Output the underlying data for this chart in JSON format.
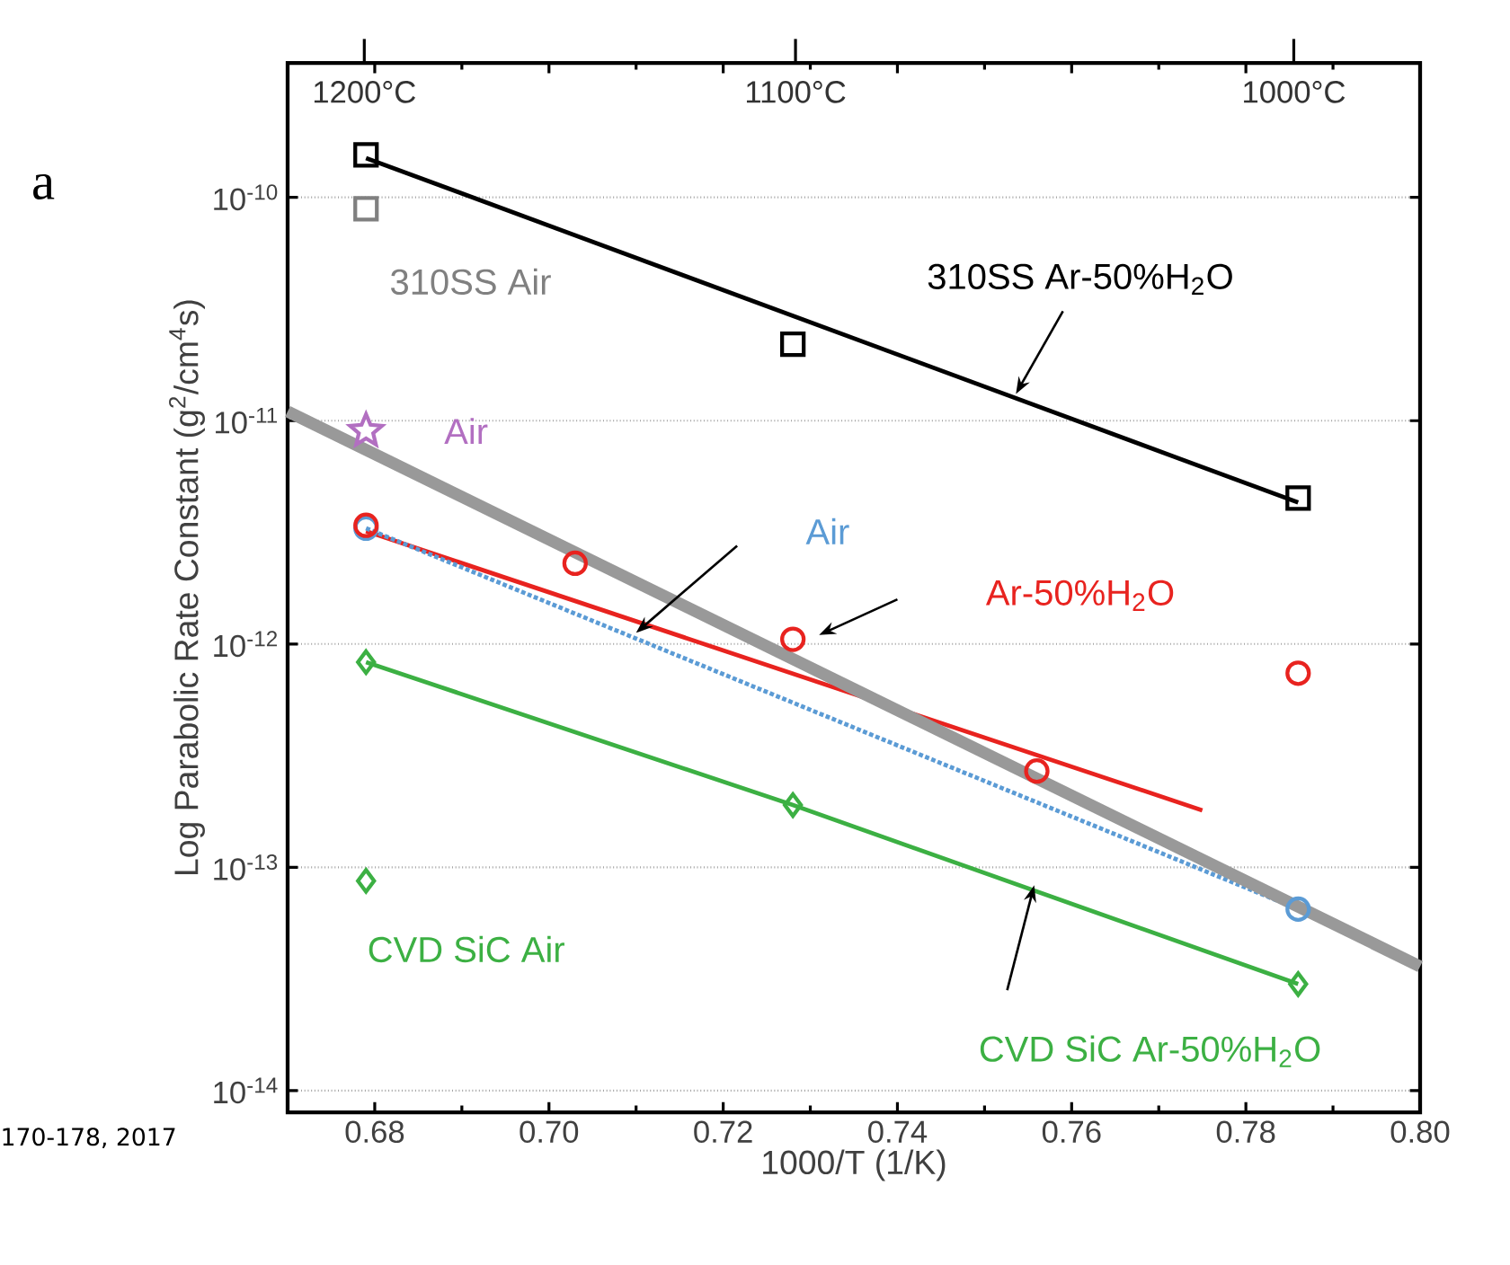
{
  "chart_data": {
    "type": "scatter",
    "xlabel": "1000/T (1/K)",
    "ylabel": "Log Parabolic Rate Constant (g$^{2}$/cm$^{4}$s)",
    "xlim": [
      0.67,
      0.8
    ],
    "ylim": [
      8e-15,
      4e-10
    ],
    "log": "y",
    "grid": "y",
    "xticks": [
      {
        "value": 0.68,
        "label": "0.68"
      },
      {
        "value": 0.7,
        "label": "0.70"
      },
      {
        "value": 0.72,
        "label": "0.72"
      },
      {
        "value": 0.74,
        "label": "0.74"
      },
      {
        "value": 0.76,
        "label": "0.76"
      },
      {
        "value": 0.78,
        "label": "0.78"
      },
      {
        "value": 0.8,
        "label": "0.80"
      }
    ],
    "yticks": [
      {
        "value": 1e-14,
        "label": "10$^{-14}$"
      },
      {
        "value": 1e-13,
        "label": "10$^{-13}$"
      },
      {
        "value": 1e-12,
        "label": "10$^{-12}$"
      },
      {
        "value": 1e-11,
        "label": "10$^{-11}$"
      },
      {
        "value": 1e-10,
        "label": "10$^{-10}$"
      }
    ],
    "annotations": [
      "a",
      "170-178, 2017",
      "1200°C",
      "1100°C",
      "1000°C"
    ],
    "series": [
      {
        "name": "310SS Ar-50%H$_{2}$O",
        "type": "scatter",
        "color": "#000000",
        "marker": "square",
        "x": [
          0.679,
          0.728,
          0.786
        ],
        "values": [
          1.55e-10,
          2.2e-11,
          4.5e-12
        ]
      },
      {
        "type": "line",
        "color": "#000000",
        "marker": "none",
        "x": [
          0.679,
          0.786
        ],
        "values": [
          1.5e-10,
          4.3e-12
        ]
      },
      {
        "name": "310SS Air",
        "type": "scatter",
        "color": "#808080",
        "marker": "square",
        "x": [
          0.679
        ],
        "values": [
          8.9e-11
        ]
      },
      {
        "name": "Ar-50%H$_{2}$O",
        "type": "scatter",
        "color": "#e8231f",
        "marker": "circle",
        "x": [
          0.679,
          0.703,
          0.728,
          0.756,
          0.786
        ],
        "values": [
          3.4e-12,
          2.3e-12,
          1.05e-12,
          2.7e-13,
          7.4e-13
        ]
      },
      {
        "type": "line",
        "color": "#e8231f",
        "marker": "none",
        "x": [
          0.679,
          0.775
        ],
        "values": [
          3.2e-12,
          1.8e-13
        ]
      },
      {
        "name": "Air",
        "type": "line",
        "color": "#5b9bd5",
        "marker": "circle",
        "line_style": "dotted",
        "x": [
          0.679,
          0.786
        ],
        "values": [
          3.3e-12,
          6.5e-14
        ]
      },
      {
        "name": "Air",
        "type": "scatter",
        "color": "#b26fc1",
        "marker": "star",
        "x": [
          0.679
        ],
        "values": [
          9e-12
        ]
      },
      {
        "name": "CVD SiC Ar-50%H$_{2}$O",
        "type": "line",
        "color": "#3cb043",
        "marker": "diamond",
        "x": [
          0.679,
          0.728,
          0.786
        ],
        "values": [
          8.3e-13,
          1.9e-13,
          3e-14
        ]
      },
      {
        "name": "CVD SiC Air",
        "type": "scatter",
        "color": "#3cb043",
        "marker": "diamond",
        "x": [
          0.679
        ],
        "values": [
          8.7e-14
        ]
      },
      {
        "type": "line",
        "color": "#999999",
        "marker": "none",
        "x": [
          0.67,
          0.8
        ],
        "values": [
          1.1e-11,
          3.6e-14
        ]
      }
    ]
  }
}
